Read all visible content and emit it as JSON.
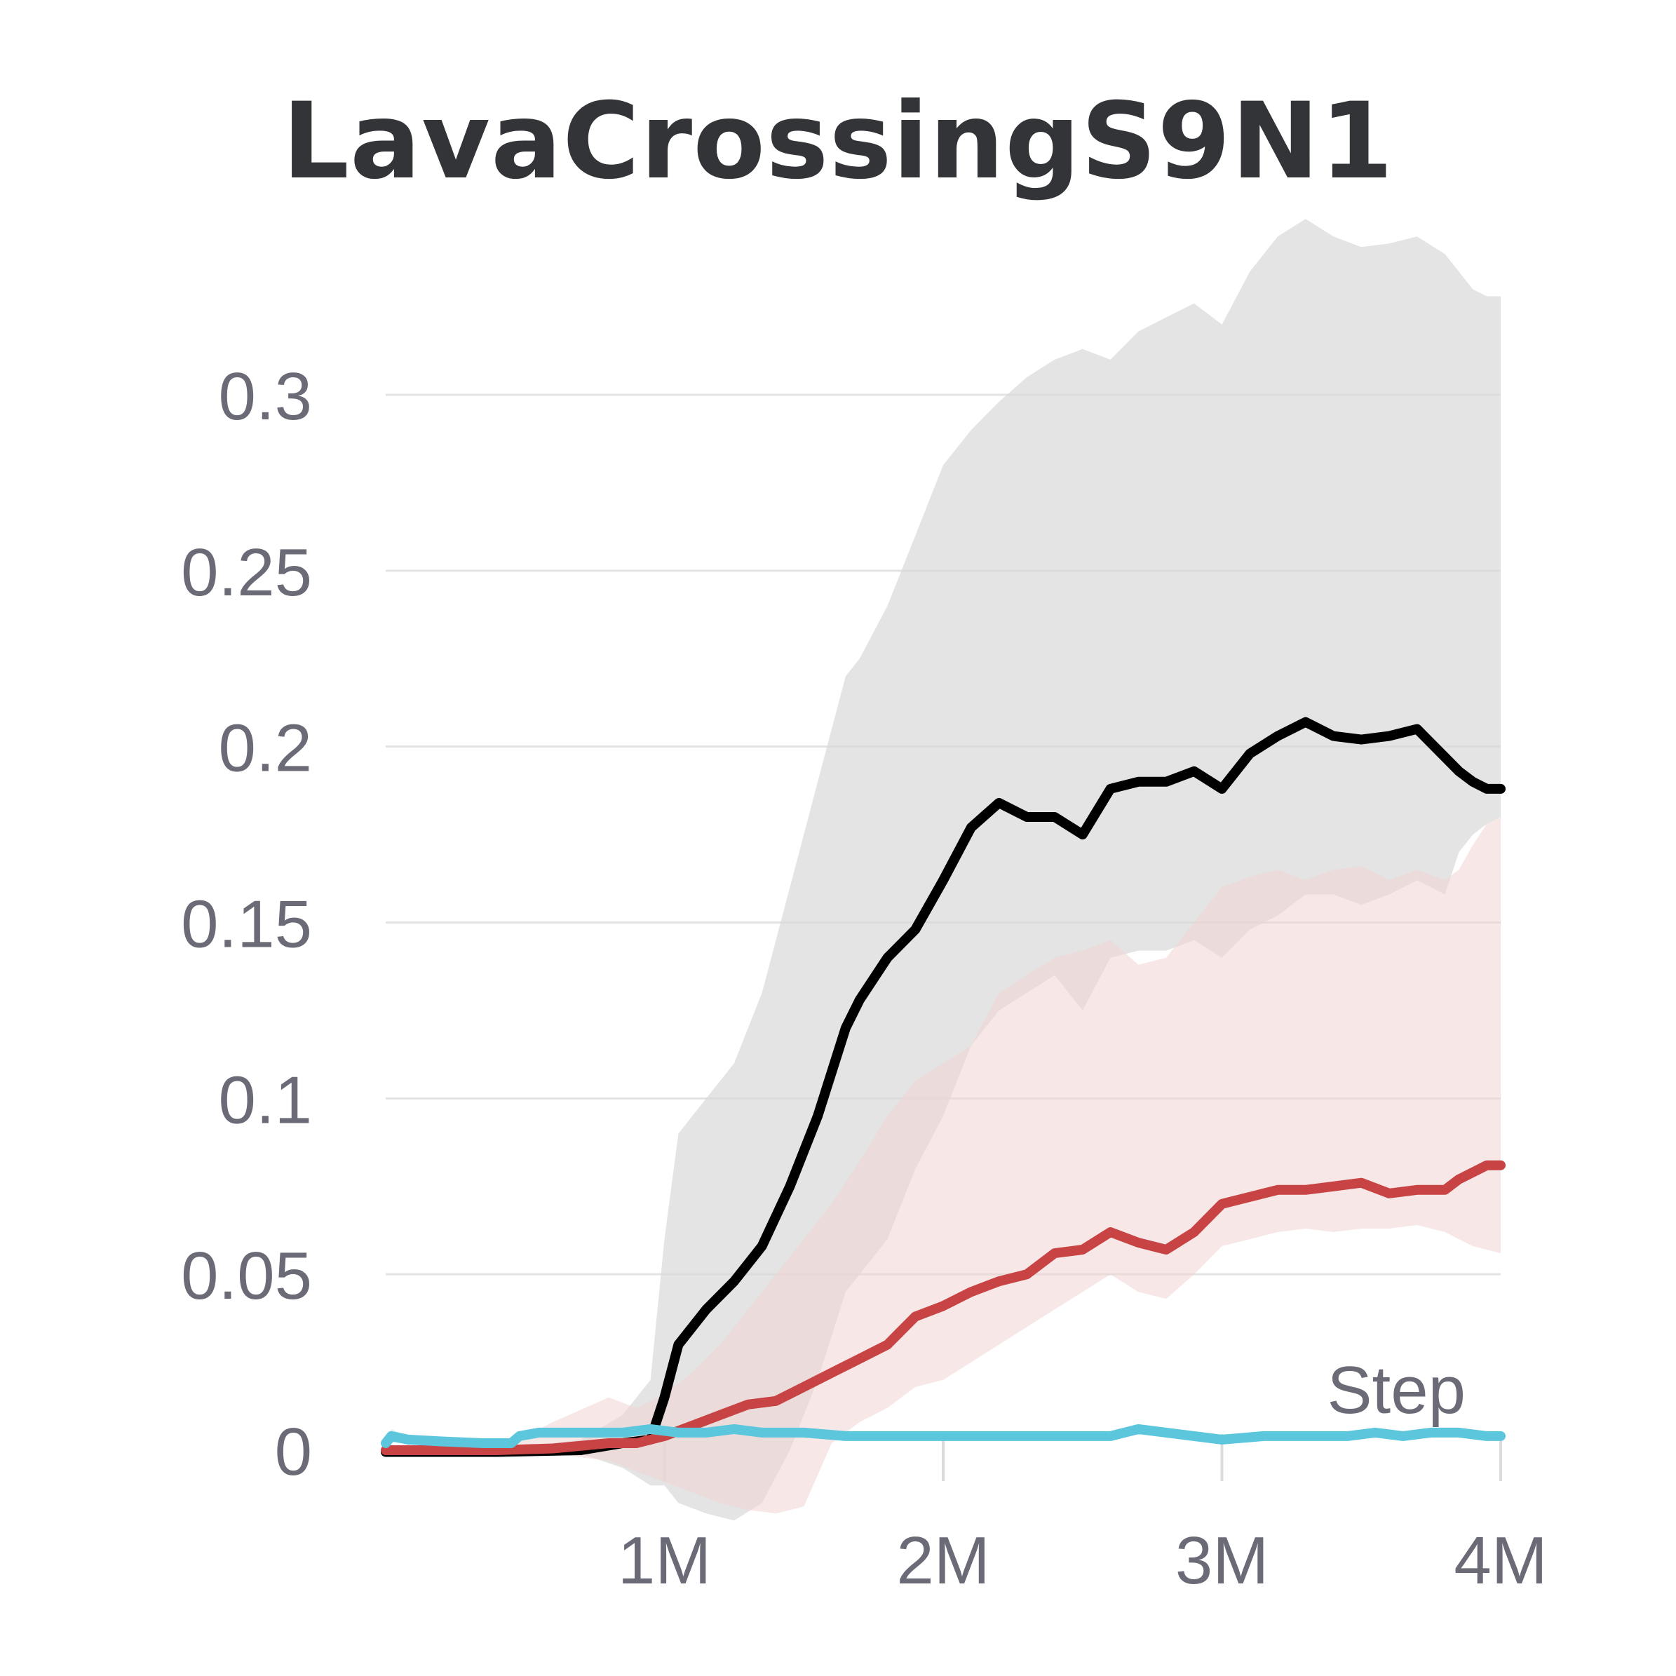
{
  "chart_data": {
    "type": "line",
    "title": "LavaCrossingS9N1",
    "xlabel": "Step",
    "ylabel": "",
    "xlim": [
      0,
      4000000
    ],
    "ylim": [
      0,
      0.3
    ],
    "grid": true,
    "x_ticks": [
      {
        "value": 1000000,
        "label": "1M"
      },
      {
        "value": 2000000,
        "label": "2M"
      },
      {
        "value": 3000000,
        "label": "3M"
      },
      {
        "value": 4000000,
        "label": "4M"
      }
    ],
    "y_ticks": [
      {
        "value": 0,
        "label": "0"
      },
      {
        "value": 0.05,
        "label": "0.05"
      },
      {
        "value": 0.1,
        "label": "0.1"
      },
      {
        "value": 0.15,
        "label": "0.15"
      },
      {
        "value": 0.2,
        "label": "0.2"
      },
      {
        "value": 0.25,
        "label": "0.25"
      },
      {
        "value": 0.3,
        "label": "0.3"
      }
    ],
    "series": [
      {
        "name": "black",
        "color": "#000000",
        "band_color": "#d8d8d8",
        "x": [
          0,
          400000,
          700000,
          850000,
          950000,
          1000000,
          1050000,
          1150000,
          1250000,
          1350000,
          1450000,
          1550000,
          1650000,
          1700000,
          1800000,
          1900000,
          2000000,
          2100000,
          2200000,
          2300000,
          2400000,
          2500000,
          2600000,
          2700000,
          2800000,
          2900000,
          3000000,
          3100000,
          3200000,
          3300000,
          3400000,
          3500000,
          3600000,
          3700000,
          3800000,
          3850000,
          3900000,
          3950000,
          4000000
        ],
        "values": [
          -0.0005,
          -0.0005,
          0.0,
          0.002,
          0.003,
          0.015,
          0.03,
          0.04,
          0.048,
          0.058,
          0.075,
          0.095,
          0.12,
          0.128,
          0.14,
          0.148,
          0.162,
          0.177,
          0.184,
          0.18,
          0.18,
          0.175,
          0.188,
          0.19,
          0.19,
          0.193,
          0.188,
          0.198,
          0.203,
          0.207,
          0.203,
          0.202,
          0.203,
          0.205,
          0.197,
          0.193,
          0.19,
          0.188,
          0.188
        ],
        "lower": [
          -0.001,
          -0.001,
          -0.001,
          -0.005,
          -0.01,
          -0.01,
          -0.015,
          -0.018,
          -0.02,
          -0.015,
          0.0,
          0.02,
          0.045,
          0.05,
          0.06,
          0.08,
          0.095,
          0.115,
          0.125,
          0.13,
          0.135,
          0.125,
          0.14,
          0.142,
          0.142,
          0.145,
          0.14,
          0.148,
          0.152,
          0.158,
          0.158,
          0.155,
          0.158,
          0.162,
          0.158,
          0.17,
          0.175,
          0.178,
          0.18
        ],
        "upper": [
          0.0,
          0.0,
          0.003,
          0.01,
          0.02,
          0.06,
          0.09,
          0.1,
          0.11,
          0.13,
          0.16,
          0.19,
          0.22,
          0.225,
          0.24,
          0.26,
          0.28,
          0.29,
          0.298,
          0.305,
          0.31,
          0.313,
          0.31,
          0.318,
          0.322,
          0.326,
          0.32,
          0.335,
          0.345,
          0.35,
          0.345,
          0.342,
          0.343,
          0.345,
          0.34,
          0.335,
          0.33,
          0.328,
          0.328
        ]
      },
      {
        "name": "red",
        "color": "#c84444",
        "band_color": "#f0d4d4",
        "x": [
          0,
          400000,
          600000,
          800000,
          900000,
          1000000,
          1100000,
          1200000,
          1300000,
          1400000,
          1500000,
          1600000,
          1700000,
          1800000,
          1900000,
          2000000,
          2100000,
          2200000,
          2300000,
          2400000,
          2500000,
          2600000,
          2700000,
          2800000,
          2900000,
          3000000,
          3100000,
          3200000,
          3300000,
          3400000,
          3500000,
          3600000,
          3700000,
          3800000,
          3850000,
          3900000,
          3950000,
          4000000
        ],
        "values": [
          0.0,
          0.0,
          0.0005,
          0.002,
          0.002,
          0.004,
          0.007,
          0.01,
          0.013,
          0.014,
          0.018,
          0.022,
          0.026,
          0.03,
          0.038,
          0.041,
          0.045,
          0.048,
          0.05,
          0.056,
          0.057,
          0.062,
          0.059,
          0.057,
          0.062,
          0.07,
          0.072,
          0.074,
          0.074,
          0.075,
          0.076,
          0.073,
          0.074,
          0.074,
          0.077,
          0.079,
          0.081,
          0.081
        ],
        "lower": [
          0.0,
          0.0,
          -0.001,
          -0.003,
          -0.006,
          -0.009,
          -0.012,
          -0.015,
          -0.017,
          -0.018,
          -0.016,
          0.002,
          0.008,
          0.012,
          0.018,
          0.02,
          0.025,
          0.03,
          0.035,
          0.04,
          0.045,
          0.05,
          0.045,
          0.043,
          0.05,
          0.058,
          0.06,
          0.062,
          0.063,
          0.062,
          0.063,
          0.063,
          0.064,
          0.062,
          0.06,
          0.058,
          0.057,
          0.056
        ],
        "upper": [
          0.0,
          0.0,
          0.008,
          0.015,
          0.012,
          0.016,
          0.022,
          0.03,
          0.04,
          0.05,
          0.06,
          0.07,
          0.082,
          0.095,
          0.105,
          0.11,
          0.115,
          0.13,
          0.135,
          0.14,
          0.142,
          0.145,
          0.138,
          0.14,
          0.15,
          0.16,
          0.163,
          0.165,
          0.162,
          0.165,
          0.166,
          0.162,
          0.165,
          0.162,
          0.165,
          0.172,
          0.178,
          0.18
        ]
      },
      {
        "name": "cyan",
        "color": "#5cc6dc",
        "band_color": "#cdeef5",
        "x": [
          0,
          20000,
          80000,
          200000,
          350000,
          450000,
          480000,
          550000,
          650000,
          750000,
          850000,
          950000,
          1050000,
          1150000,
          1250000,
          1350000,
          1500000,
          1650000,
          1800000,
          2000000,
          2200000,
          2400000,
          2600000,
          2700000,
          2800000,
          2900000,
          3000000,
          3150000,
          3300000,
          3450000,
          3550000,
          3650000,
          3750000,
          3850000,
          3950000,
          4000000
        ],
        "values": [
          0.002,
          0.004,
          0.003,
          0.0025,
          0.002,
          0.002,
          0.004,
          0.005,
          0.005,
          0.005,
          0.005,
          0.006,
          0.005,
          0.005,
          0.006,
          0.005,
          0.005,
          0.004,
          0.004,
          0.004,
          0.004,
          0.004,
          0.004,
          0.006,
          0.005,
          0.004,
          0.003,
          0.004,
          0.004,
          0.004,
          0.005,
          0.004,
          0.005,
          0.005,
          0.004,
          0.004
        ],
        "lower": [
          0.001,
          0.002,
          0.002,
          0.002,
          0.0015,
          0.0015,
          0.003,
          0.004,
          0.004,
          0.004,
          0.004,
          0.005,
          0.004,
          0.004,
          0.005,
          0.004,
          0.004,
          0.003,
          0.003,
          0.003,
          0.003,
          0.003,
          0.003,
          0.005,
          0.004,
          0.003,
          0.002,
          0.003,
          0.003,
          0.003,
          0.004,
          0.003,
          0.004,
          0.004,
          0.003,
          0.003
        ],
        "upper": [
          0.003,
          0.006,
          0.004,
          0.003,
          0.0025,
          0.0025,
          0.005,
          0.006,
          0.006,
          0.006,
          0.006,
          0.007,
          0.006,
          0.006,
          0.007,
          0.006,
          0.006,
          0.005,
          0.005,
          0.005,
          0.005,
          0.005,
          0.005,
          0.007,
          0.006,
          0.005,
          0.004,
          0.005,
          0.005,
          0.005,
          0.006,
          0.005,
          0.006,
          0.006,
          0.005,
          0.005
        ]
      }
    ]
  }
}
